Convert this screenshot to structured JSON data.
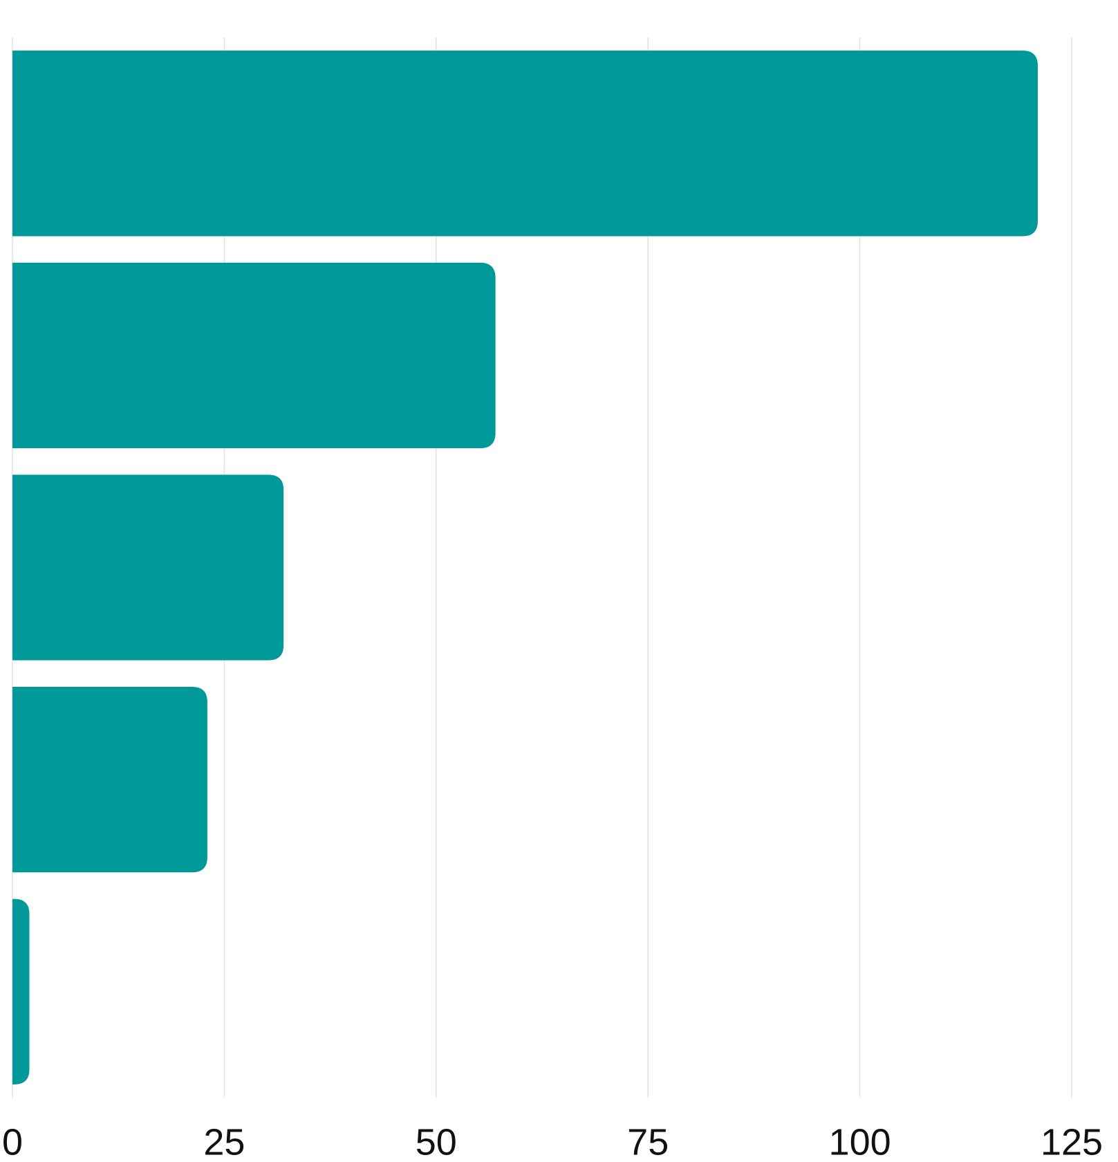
{
  "chart_data": {
    "type": "barh",
    "values": [
      121,
      57,
      32,
      23,
      2
    ],
    "color": "#009999",
    "xlim": [
      0,
      125
    ],
    "xticks": [
      0,
      25,
      50,
      75,
      100,
      125
    ],
    "grid": true
  }
}
